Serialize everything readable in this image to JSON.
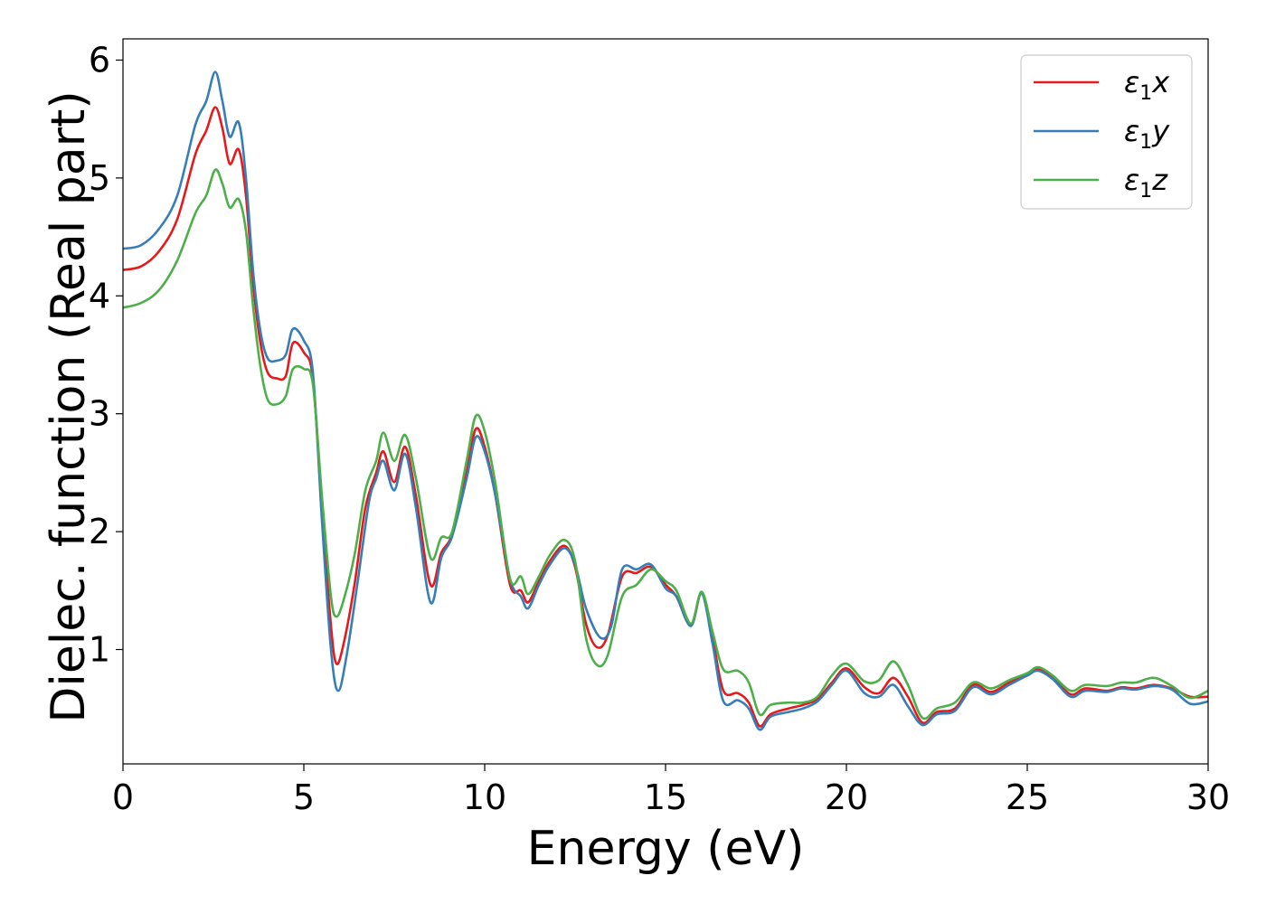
{
  "chart_data": {
    "type": "line",
    "title": "",
    "xlabel": "Energy (eV)",
    "ylabel": "Dielec. function (Real part)",
    "xlim": [
      0,
      30
    ],
    "ylim": [
      0.03,
      6.18
    ],
    "xticks": [
      0,
      5,
      10,
      15,
      20,
      25,
      30
    ],
    "yticks": [
      1,
      2,
      3,
      4,
      5,
      6
    ],
    "grid": false,
    "legend_position": "top-right",
    "series": [
      {
        "name": "ε1x",
        "legend_main": "ε",
        "legend_sub": "1",
        "legend_suffix": "x",
        "color": "#e41a1c",
        "points": [
          [
            0,
            4.22
          ],
          [
            0.5,
            4.25
          ],
          [
            1,
            4.38
          ],
          [
            1.5,
            4.65
          ],
          [
            2,
            5.2
          ],
          [
            2.3,
            5.4
          ],
          [
            2.55,
            5.6
          ],
          [
            2.75,
            5.42
          ],
          [
            2.95,
            5.12
          ],
          [
            3.2,
            5.24
          ],
          [
            3.4,
            4.85
          ],
          [
            3.6,
            4.1
          ],
          [
            3.8,
            3.6
          ],
          [
            4.0,
            3.35
          ],
          [
            4.25,
            3.3
          ],
          [
            4.5,
            3.32
          ],
          [
            4.7,
            3.6
          ],
          [
            5.0,
            3.52
          ],
          [
            5.25,
            3.3
          ],
          [
            5.5,
            2.2
          ],
          [
            5.75,
            1.2
          ],
          [
            5.9,
            0.88
          ],
          [
            6.1,
            1.05
          ],
          [
            6.4,
            1.55
          ],
          [
            6.7,
            2.2
          ],
          [
            7.0,
            2.5
          ],
          [
            7.2,
            2.68
          ],
          [
            7.5,
            2.42
          ],
          [
            7.8,
            2.72
          ],
          [
            8.1,
            2.3
          ],
          [
            8.5,
            1.55
          ],
          [
            8.8,
            1.82
          ],
          [
            9.1,
            1.98
          ],
          [
            9.5,
            2.5
          ],
          [
            9.75,
            2.87
          ],
          [
            10.0,
            2.72
          ],
          [
            10.3,
            2.3
          ],
          [
            10.7,
            1.55
          ],
          [
            11.0,
            1.5
          ],
          [
            11.2,
            1.4
          ],
          [
            11.5,
            1.58
          ],
          [
            11.8,
            1.75
          ],
          [
            12.2,
            1.88
          ],
          [
            12.5,
            1.7
          ],
          [
            12.8,
            1.22
          ],
          [
            13.1,
            1.02
          ],
          [
            13.4,
            1.12
          ],
          [
            13.8,
            1.62
          ],
          [
            14.2,
            1.65
          ],
          [
            14.6,
            1.7
          ],
          [
            15.0,
            1.55
          ],
          [
            15.3,
            1.45
          ],
          [
            15.7,
            1.2
          ],
          [
            16.0,
            1.48
          ],
          [
            16.3,
            1.1
          ],
          [
            16.6,
            0.65
          ],
          [
            17.0,
            0.63
          ],
          [
            17.3,
            0.55
          ],
          [
            17.6,
            0.35
          ],
          [
            17.9,
            0.45
          ],
          [
            18.4,
            0.5
          ],
          [
            18.8,
            0.53
          ],
          [
            19.2,
            0.58
          ],
          [
            19.6,
            0.72
          ],
          [
            20.0,
            0.84
          ],
          [
            20.5,
            0.68
          ],
          [
            20.9,
            0.63
          ],
          [
            21.3,
            0.76
          ],
          [
            21.7,
            0.6
          ],
          [
            22.1,
            0.38
          ],
          [
            22.5,
            0.47
          ],
          [
            23.0,
            0.5
          ],
          [
            23.5,
            0.7
          ],
          [
            24.0,
            0.64
          ],
          [
            24.5,
            0.72
          ],
          [
            25.0,
            0.78
          ],
          [
            25.3,
            0.83
          ],
          [
            25.7,
            0.76
          ],
          [
            26.2,
            0.62
          ],
          [
            26.6,
            0.67
          ],
          [
            27.2,
            0.65
          ],
          [
            27.6,
            0.68
          ],
          [
            28.0,
            0.67
          ],
          [
            28.5,
            0.7
          ],
          [
            29.0,
            0.67
          ],
          [
            29.5,
            0.6
          ],
          [
            30.0,
            0.6
          ]
        ]
      },
      {
        "name": "ε1y",
        "legend_main": "ε",
        "legend_sub": "1",
        "legend_suffix": "y",
        "color": "#377eb8",
        "points": [
          [
            0,
            4.4
          ],
          [
            0.5,
            4.43
          ],
          [
            1,
            4.57
          ],
          [
            1.5,
            4.85
          ],
          [
            2,
            5.45
          ],
          [
            2.3,
            5.65
          ],
          [
            2.55,
            5.9
          ],
          [
            2.75,
            5.65
          ],
          [
            2.95,
            5.35
          ],
          [
            3.2,
            5.47
          ],
          [
            3.4,
            5.0
          ],
          [
            3.6,
            4.2
          ],
          [
            3.8,
            3.7
          ],
          [
            4.0,
            3.47
          ],
          [
            4.25,
            3.45
          ],
          [
            4.5,
            3.5
          ],
          [
            4.7,
            3.72
          ],
          [
            5.0,
            3.62
          ],
          [
            5.25,
            3.35
          ],
          [
            5.5,
            2.1
          ],
          [
            5.75,
            1.0
          ],
          [
            5.95,
            0.65
          ],
          [
            6.2,
            0.98
          ],
          [
            6.5,
            1.6
          ],
          [
            6.8,
            2.25
          ],
          [
            7.0,
            2.45
          ],
          [
            7.2,
            2.6
          ],
          [
            7.5,
            2.35
          ],
          [
            7.8,
            2.66
          ],
          [
            8.1,
            2.2
          ],
          [
            8.5,
            1.4
          ],
          [
            8.8,
            1.78
          ],
          [
            9.1,
            1.96
          ],
          [
            9.5,
            2.45
          ],
          [
            9.75,
            2.8
          ],
          [
            10.0,
            2.68
          ],
          [
            10.3,
            2.3
          ],
          [
            10.7,
            1.6
          ],
          [
            11.0,
            1.45
          ],
          [
            11.2,
            1.35
          ],
          [
            11.5,
            1.55
          ],
          [
            11.8,
            1.72
          ],
          [
            12.2,
            1.86
          ],
          [
            12.5,
            1.72
          ],
          [
            12.8,
            1.35
          ],
          [
            13.2,
            1.1
          ],
          [
            13.5,
            1.2
          ],
          [
            13.8,
            1.68
          ],
          [
            14.2,
            1.68
          ],
          [
            14.6,
            1.72
          ],
          [
            15.0,
            1.52
          ],
          [
            15.3,
            1.45
          ],
          [
            15.7,
            1.2
          ],
          [
            16.0,
            1.48
          ],
          [
            16.3,
            1.05
          ],
          [
            16.6,
            0.56
          ],
          [
            17.0,
            0.57
          ],
          [
            17.3,
            0.5
          ],
          [
            17.6,
            0.32
          ],
          [
            17.9,
            0.43
          ],
          [
            18.4,
            0.47
          ],
          [
            18.8,
            0.5
          ],
          [
            19.2,
            0.56
          ],
          [
            19.6,
            0.7
          ],
          [
            20.0,
            0.82
          ],
          [
            20.5,
            0.63
          ],
          [
            20.9,
            0.6
          ],
          [
            21.3,
            0.7
          ],
          [
            21.7,
            0.52
          ],
          [
            22.1,
            0.36
          ],
          [
            22.5,
            0.45
          ],
          [
            23.0,
            0.48
          ],
          [
            23.5,
            0.68
          ],
          [
            24.0,
            0.62
          ],
          [
            24.5,
            0.7
          ],
          [
            25.0,
            0.78
          ],
          [
            25.3,
            0.82
          ],
          [
            25.7,
            0.75
          ],
          [
            26.2,
            0.6
          ],
          [
            26.6,
            0.65
          ],
          [
            27.2,
            0.64
          ],
          [
            27.6,
            0.67
          ],
          [
            28.0,
            0.66
          ],
          [
            28.5,
            0.69
          ],
          [
            29.0,
            0.66
          ],
          [
            29.5,
            0.54
          ],
          [
            30.0,
            0.56
          ]
        ]
      },
      {
        "name": "ε1z",
        "legend_main": "ε",
        "legend_sub": "1",
        "legend_suffix": "z",
        "color": "#4daf4a",
        "points": [
          [
            0,
            3.9
          ],
          [
            0.5,
            3.94
          ],
          [
            1,
            4.05
          ],
          [
            1.5,
            4.3
          ],
          [
            2,
            4.7
          ],
          [
            2.3,
            4.85
          ],
          [
            2.55,
            5.07
          ],
          [
            2.75,
            4.95
          ],
          [
            2.95,
            4.75
          ],
          [
            3.2,
            4.82
          ],
          [
            3.4,
            4.55
          ],
          [
            3.6,
            3.9
          ],
          [
            3.8,
            3.4
          ],
          [
            4.0,
            3.12
          ],
          [
            4.25,
            3.08
          ],
          [
            4.5,
            3.15
          ],
          [
            4.7,
            3.38
          ],
          [
            5.0,
            3.38
          ],
          [
            5.25,
            3.25
          ],
          [
            5.5,
            2.3
          ],
          [
            5.75,
            1.45
          ],
          [
            5.9,
            1.28
          ],
          [
            6.1,
            1.42
          ],
          [
            6.4,
            1.8
          ],
          [
            6.7,
            2.35
          ],
          [
            7.0,
            2.6
          ],
          [
            7.2,
            2.84
          ],
          [
            7.5,
            2.6
          ],
          [
            7.8,
            2.82
          ],
          [
            8.1,
            2.45
          ],
          [
            8.5,
            1.78
          ],
          [
            8.8,
            1.95
          ],
          [
            9.1,
            2.0
          ],
          [
            9.5,
            2.6
          ],
          [
            9.75,
            2.98
          ],
          [
            10.0,
            2.85
          ],
          [
            10.3,
            2.4
          ],
          [
            10.7,
            1.6
          ],
          [
            11.0,
            1.62
          ],
          [
            11.2,
            1.47
          ],
          [
            11.5,
            1.62
          ],
          [
            11.8,
            1.8
          ],
          [
            12.2,
            1.93
          ],
          [
            12.5,
            1.75
          ],
          [
            12.8,
            1.1
          ],
          [
            13.1,
            0.87
          ],
          [
            13.4,
            0.95
          ],
          [
            13.8,
            1.45
          ],
          [
            14.2,
            1.55
          ],
          [
            14.6,
            1.68
          ],
          [
            15.0,
            1.58
          ],
          [
            15.3,
            1.5
          ],
          [
            15.7,
            1.22
          ],
          [
            16.0,
            1.49
          ],
          [
            16.3,
            1.15
          ],
          [
            16.6,
            0.83
          ],
          [
            17.0,
            0.82
          ],
          [
            17.3,
            0.72
          ],
          [
            17.6,
            0.45
          ],
          [
            17.9,
            0.53
          ],
          [
            18.4,
            0.55
          ],
          [
            18.8,
            0.55
          ],
          [
            19.2,
            0.6
          ],
          [
            19.6,
            0.78
          ],
          [
            20.0,
            0.88
          ],
          [
            20.5,
            0.73
          ],
          [
            20.9,
            0.74
          ],
          [
            21.3,
            0.9
          ],
          [
            21.7,
            0.7
          ],
          [
            22.1,
            0.42
          ],
          [
            22.5,
            0.5
          ],
          [
            23.0,
            0.55
          ],
          [
            23.5,
            0.72
          ],
          [
            24.0,
            0.67
          ],
          [
            24.5,
            0.74
          ],
          [
            25.0,
            0.8
          ],
          [
            25.3,
            0.85
          ],
          [
            25.7,
            0.78
          ],
          [
            26.2,
            0.65
          ],
          [
            26.6,
            0.7
          ],
          [
            27.2,
            0.69
          ],
          [
            27.6,
            0.72
          ],
          [
            28.0,
            0.72
          ],
          [
            28.5,
            0.76
          ],
          [
            29.0,
            0.69
          ],
          [
            29.5,
            0.59
          ],
          [
            30.0,
            0.65
          ]
        ]
      }
    ]
  }
}
